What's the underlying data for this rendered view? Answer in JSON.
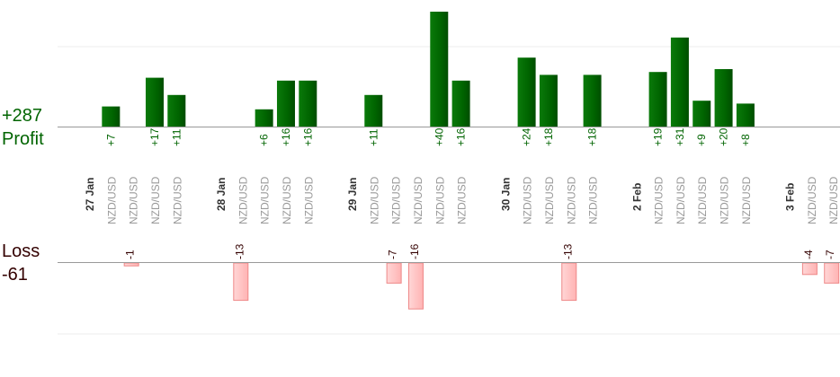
{
  "chart_data": {
    "type": "bar",
    "summary": {
      "profit_total": "+287",
      "profit_label": "Profit",
      "loss_label": "Loss",
      "loss_total": "-61"
    },
    "colors": {
      "profit": "#006400",
      "loss": "#ffb3b3",
      "profit_text": "#006400",
      "loss_text": "#330000",
      "date_text": "#333333",
      "pair_text": "#999999"
    },
    "columns": [
      {
        "kind": "date",
        "label": "27 Jan"
      },
      {
        "kind": "trade",
        "pair": "NZD/USD",
        "value": 7,
        "label": "+7"
      },
      {
        "kind": "trade",
        "pair": "NZD/USD",
        "value": -1,
        "label": "-1"
      },
      {
        "kind": "trade",
        "pair": "NZD/USD",
        "value": 17,
        "label": "+17"
      },
      {
        "kind": "trade",
        "pair": "NZD/USD",
        "value": 11,
        "label": "+11"
      },
      {
        "kind": "gap"
      },
      {
        "kind": "date",
        "label": "28 Jan"
      },
      {
        "kind": "trade",
        "pair": "NZD/USD",
        "value": -13,
        "label": "-13"
      },
      {
        "kind": "trade",
        "pair": "NZD/USD",
        "value": 6,
        "label": "+6"
      },
      {
        "kind": "trade",
        "pair": "NZD/USD",
        "value": 16,
        "label": "+16"
      },
      {
        "kind": "trade",
        "pair": "NZD/USD",
        "value": 16,
        "label": "+16"
      },
      {
        "kind": "gap"
      },
      {
        "kind": "date",
        "label": "29 Jan"
      },
      {
        "kind": "trade",
        "pair": "NZD/USD",
        "value": 11,
        "label": "+11"
      },
      {
        "kind": "trade",
        "pair": "NZD/USD",
        "value": -7,
        "label": "-7"
      },
      {
        "kind": "trade",
        "pair": "NZD/USD",
        "value": -16,
        "label": "-16"
      },
      {
        "kind": "trade",
        "pair": "NZD/USD",
        "value": 40,
        "label": "+40"
      },
      {
        "kind": "trade",
        "pair": "NZD/USD",
        "value": 16,
        "label": "+16"
      },
      {
        "kind": "gap"
      },
      {
        "kind": "date",
        "label": "30 Jan"
      },
      {
        "kind": "trade",
        "pair": "NZD/USD",
        "value": 24,
        "label": "+24"
      },
      {
        "kind": "trade",
        "pair": "NZD/USD",
        "value": 18,
        "label": "+18"
      },
      {
        "kind": "trade",
        "pair": "NZD/USD",
        "value": -13,
        "label": "-13"
      },
      {
        "kind": "trade",
        "pair": "NZD/USD",
        "value": 18,
        "label": "+18"
      },
      {
        "kind": "gap"
      },
      {
        "kind": "date",
        "label": "2 Feb"
      },
      {
        "kind": "trade",
        "pair": "NZD/USD",
        "value": 19,
        "label": "+19"
      },
      {
        "kind": "trade",
        "pair": "NZD/USD",
        "value": 31,
        "label": "+31"
      },
      {
        "kind": "trade",
        "pair": "NZD/USD",
        "value": 9,
        "label": "+9"
      },
      {
        "kind": "trade",
        "pair": "NZD/USD",
        "value": 20,
        "label": "+20"
      },
      {
        "kind": "trade",
        "pair": "NZD/USD",
        "value": 8,
        "label": "+8"
      },
      {
        "kind": "gap"
      },
      {
        "kind": "date",
        "label": "3 Feb"
      },
      {
        "kind": "trade",
        "pair": "NZD/USD",
        "value": -4,
        "label": "-4"
      },
      {
        "kind": "trade",
        "pair": "NZD/USD",
        "value": -7,
        "label": "-7"
      }
    ]
  }
}
